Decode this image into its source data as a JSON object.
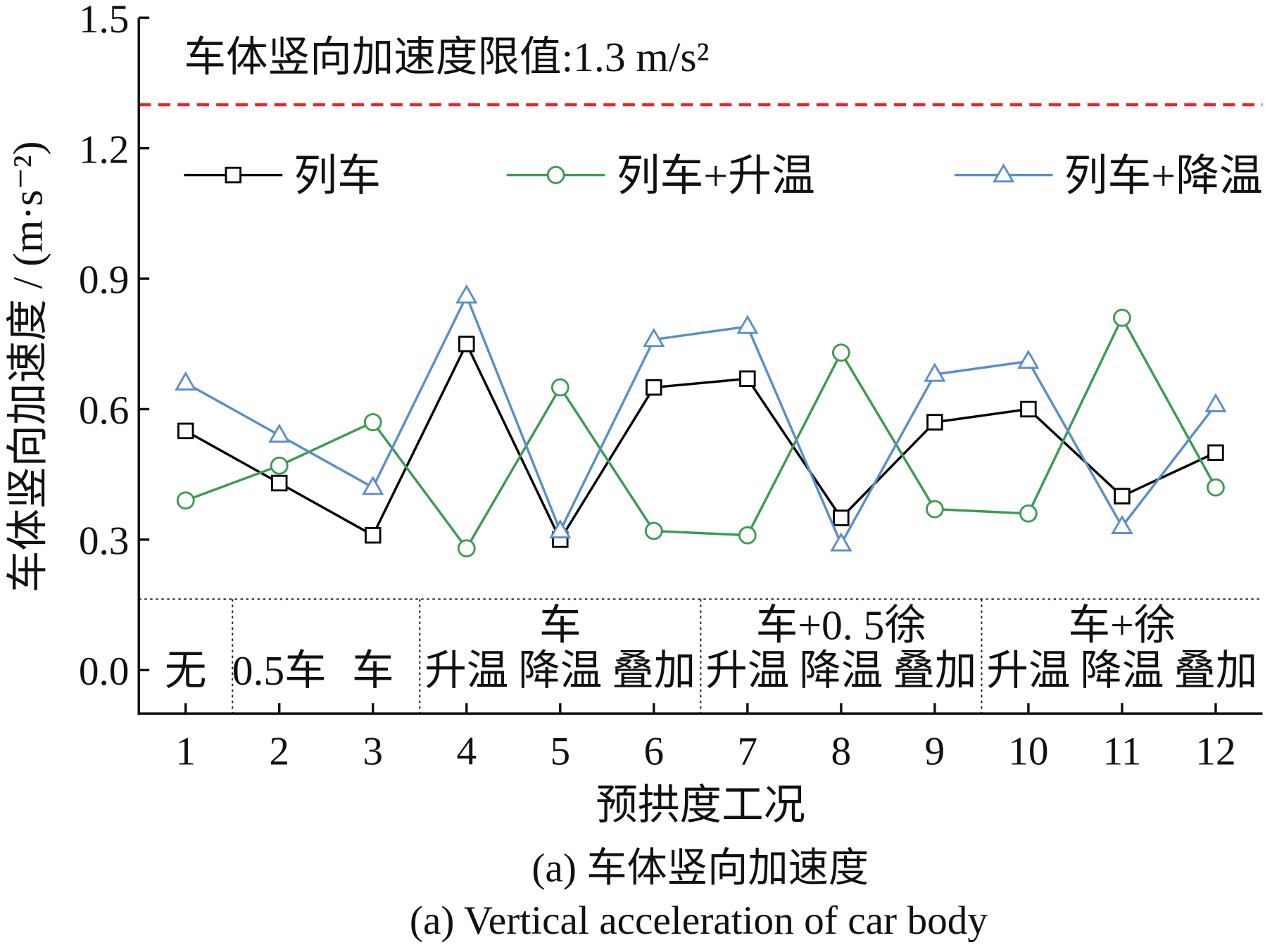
{
  "chart_data": {
    "type": "line",
    "title": "",
    "caption_cn": "(a) 车体竖向加速度",
    "caption_en": "(a) Vertical acceleration of car body",
    "xlabel": "预拱度工况",
    "ylabel": "车体竖向加速度 / (m·s⁻²)",
    "x": [
      1,
      2,
      3,
      4,
      5,
      6,
      7,
      8,
      9,
      10,
      11,
      12
    ],
    "xticks": [
      "1",
      "2",
      "3",
      "4",
      "5",
      "6",
      "7",
      "8",
      "9",
      "10",
      "11",
      "12"
    ],
    "yticks": [
      "0.0",
      "0.3",
      "0.6",
      "0.9",
      "1.2",
      "1.5"
    ],
    "xlim": [
      0.5,
      12.5
    ],
    "ylim": [
      -0.1,
      1.5
    ],
    "grid": false,
    "legend_position": "top",
    "limit": {
      "value": 1.3,
      "label": "车体竖向加速度限值:1.3 m/s²",
      "color": "#e2262b",
      "style": "dashed"
    },
    "series": [
      {
        "name": "列车",
        "marker": "square",
        "color": "#000000",
        "values": [
          0.55,
          0.43,
          0.31,
          0.75,
          0.3,
          0.65,
          0.67,
          0.35,
          0.57,
          0.6,
          0.4,
          0.5
        ]
      },
      {
        "name": "列车+升温",
        "marker": "circle",
        "color": "#3c9a52",
        "values": [
          0.39,
          0.47,
          0.57,
          0.28,
          0.65,
          0.32,
          0.31,
          0.73,
          0.37,
          0.36,
          0.81,
          0.42
        ]
      },
      {
        "name": "列车+降温",
        "marker": "triangle",
        "color": "#5b8ec9",
        "values": [
          0.66,
          0.54,
          0.42,
          0.86,
          0.32,
          0.76,
          0.79,
          0.29,
          0.68,
          0.71,
          0.33,
          0.61
        ]
      }
    ],
    "case_table": {
      "groups": [
        {
          "header": "",
          "labels": [
            "无"
          ]
        },
        {
          "header": "",
          "labels": [
            "0.5车",
            "车"
          ]
        },
        {
          "header": "车",
          "labels": [
            "升温",
            "降温",
            "叠加"
          ]
        },
        {
          "header": "车+0. 5徐",
          "labels": [
            "升温",
            "降温",
            "叠加"
          ]
        },
        {
          "header": "车+徐",
          "labels": [
            "升温",
            "降温",
            "叠加"
          ]
        }
      ]
    }
  }
}
